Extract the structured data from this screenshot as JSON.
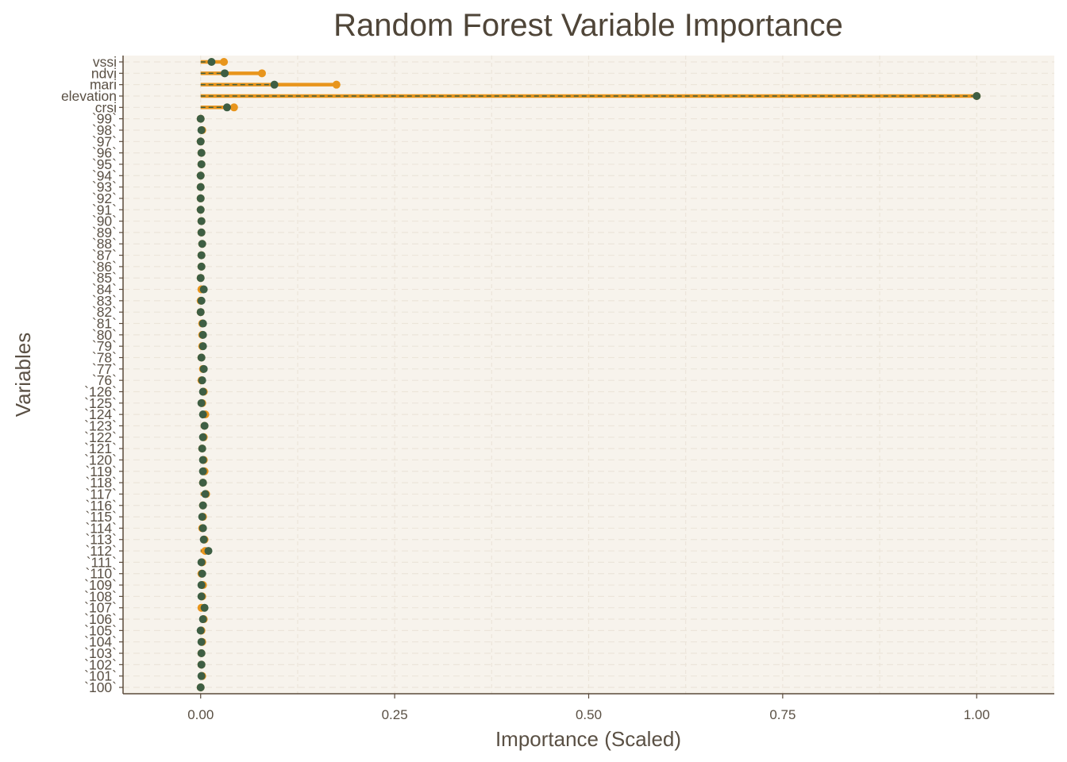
{
  "colors": {
    "panel_bg": "#f7f3ec",
    "grid": "#ece5da",
    "axis": "#5a4a3a",
    "text": "#5a5044",
    "orange": "#e8951c",
    "green": "#3e5e43"
  },
  "chart_data": {
    "type": "dot-segment",
    "title": "Random Forest Variable Importance",
    "xlabel": "Importance (Scaled)",
    "ylabel": "Variables",
    "xlim": [
      -0.1,
      1.1
    ],
    "xticks": [
      0.0,
      0.25,
      0.5,
      0.75,
      1.0
    ],
    "xtick_labels": [
      "0.00",
      "0.25",
      "0.50",
      "0.75",
      "1.00"
    ],
    "grid": true,
    "categories": [
      "vssi",
      "ndvi",
      "mari",
      "elevation",
      "crsi",
      "`99`",
      "`98`",
      "`97`",
      "`96`",
      "`95`",
      "`94`",
      "`93`",
      "`92`",
      "`91`",
      "`90`",
      "`89`",
      "`88`",
      "`87`",
      "`86`",
      "`85`",
      "`84`",
      "`83`",
      "`82`",
      "`81`",
      "`80`",
      "`79`",
      "`78`",
      "`77`",
      "`76`",
      "`126`",
      "`125`",
      "`124`",
      "`123`",
      "`122`",
      "`121`",
      "`120`",
      "`119`",
      "`118`",
      "`117`",
      "`116`",
      "`115`",
      "`114`",
      "`113`",
      "`112`",
      "`111`",
      "`110`",
      "`109`",
      "`108`",
      "`107`",
      "`106`",
      "`105`",
      "`104`",
      "`103`",
      "`102`",
      "`101`",
      "`100`"
    ],
    "series": [
      {
        "color": "#e8951c",
        "values": [
          0.03,
          0.079,
          0.175,
          1.0,
          0.043,
          0.0,
          0.002,
          0.0,
          0.001,
          0.001,
          0.0,
          0.0,
          0.0,
          0.0,
          0.001,
          0.001,
          0.002,
          0.001,
          0.001,
          0.0,
          0.001,
          0.0,
          0.0,
          0.002,
          0.002,
          0.002,
          0.001,
          0.003,
          0.001,
          0.004,
          0.002,
          0.006,
          0.005,
          0.004,
          0.002,
          0.004,
          0.005,
          0.003,
          0.007,
          0.003,
          0.003,
          0.002,
          0.005,
          0.006,
          0.002,
          0.001,
          0.003,
          0.002,
          0.001,
          0.004,
          0.001,
          0.002,
          0.001,
          0.001,
          0.002,
          0.0
        ]
      },
      {
        "color": "#3e5e43",
        "values": [
          0.014,
          0.031,
          0.095,
          1.0,
          0.034,
          0.0,
          0.001,
          0.0,
          0.001,
          0.001,
          0.0,
          0.0,
          0.0,
          0.0,
          0.001,
          0.001,
          0.002,
          0.001,
          0.001,
          0.0,
          0.004,
          0.001,
          0.0,
          0.003,
          0.003,
          0.003,
          0.001,
          0.004,
          0.002,
          0.003,
          0.001,
          0.003,
          0.005,
          0.003,
          0.002,
          0.003,
          0.003,
          0.003,
          0.006,
          0.003,
          0.002,
          0.003,
          0.004,
          0.01,
          0.001,
          0.002,
          0.001,
          0.001,
          0.005,
          0.003,
          0.0,
          0.001,
          0.001,
          0.001,
          0.001,
          0.0
        ]
      }
    ]
  }
}
